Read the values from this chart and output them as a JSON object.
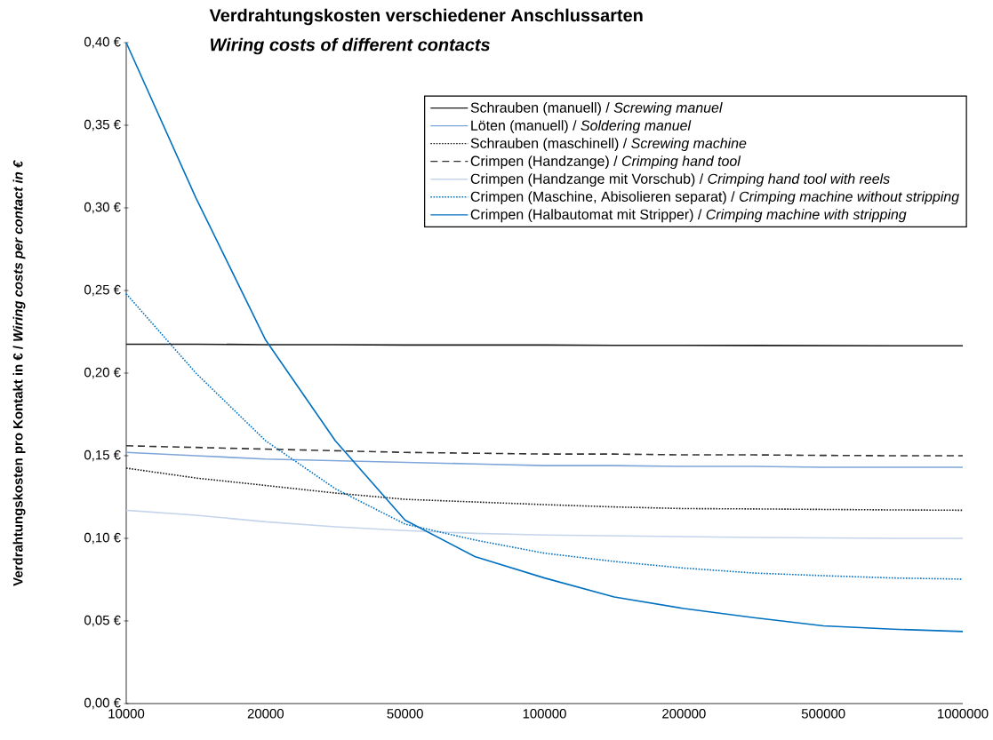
{
  "chart_data": {
    "type": "line",
    "title": "Verdrahtungskosten verschiedener Anschlussarten",
    "subtitle": "Wiring costs of different contacts",
    "ylabel": "Verdrahtungskosten pro Kontakt in € / *Wiring costs per contact in €*",
    "categories": [
      "10000",
      null,
      "20000",
      null,
      "50000",
      null,
      "100000",
      null,
      "200000",
      null,
      "500000",
      null,
      "1000000"
    ],
    "ylim": [
      0,
      0.4
    ],
    "yticks": [
      {
        "value": 0,
        "label": "0,00 €"
      },
      {
        "value": 0.05,
        "label": "0,05 €"
      },
      {
        "value": 0.1,
        "label": "0,10 €"
      },
      {
        "value": 0.15,
        "label": "0,15 €"
      },
      {
        "value": 0.2,
        "label": "0,20 €"
      },
      {
        "value": 0.25,
        "label": "0,25 €"
      },
      {
        "value": 0.3,
        "label": "0,30 €"
      },
      {
        "value": 0.35,
        "label": "0,35 €"
      },
      {
        "value": 0.4,
        "label": "0,40 €"
      }
    ],
    "legend": "top right",
    "grid": false,
    "marker": "none",
    "series": [
      {
        "name": "Schrauben (manuell) / *Screwing manuel*",
        "color": "#1a1a1a",
        "line_style": "solid",
        "values": [
          0.2175,
          0.2175,
          0.2172,
          0.2172,
          0.217,
          0.217,
          0.217,
          0.2168,
          0.2168,
          0.2167,
          0.2166,
          0.2165,
          0.2165
        ]
      },
      {
        "name": "Löten (manuell) / *Soldering manuel*",
        "color": "#7fa6d9",
        "line_style": "solid",
        "values": [
          0.152,
          0.15,
          0.148,
          0.147,
          0.146,
          0.145,
          0.144,
          0.144,
          0.1435,
          0.1435,
          0.143,
          0.143,
          0.143
        ]
      },
      {
        "name": "Schrauben (maschinell) / *Screwing machine*",
        "color": "#1a1a1a",
        "line_style": "dotted",
        "values": [
          0.1425,
          0.1365,
          0.132,
          0.1274,
          0.1236,
          0.122,
          0.1204,
          0.119,
          0.118,
          0.1178,
          0.1175,
          0.1172,
          0.117
        ]
      },
      {
        "name": "Crimpen (Handzange) / *Crimping hand tool*",
        "color": "#333333",
        "line_style": "dashed",
        "values": [
          0.156,
          0.155,
          0.154,
          0.153,
          0.152,
          0.1515,
          0.151,
          0.151,
          0.1505,
          0.1505,
          0.1502,
          0.15,
          0.15
        ]
      },
      {
        "name": "Crimpen (Handzange mit Vorschub) / *Crimping hand tool with reels*",
        "color": "#c5d5ec",
        "line_style": "solid",
        "values": [
          0.117,
          0.114,
          0.11,
          0.107,
          0.1047,
          0.103,
          0.102,
          0.1015,
          0.101,
          0.1005,
          0.1003,
          0.1,
          0.1
        ]
      },
      {
        "name": "Crimpen (Maschine, Abisolieren separat) / *Crimping machine without stripping*",
        "color": "#0070c0",
        "line_style": "dotted",
        "values": [
          0.248,
          0.2,
          0.159,
          0.13,
          0.1086,
          0.099,
          0.091,
          0.086,
          0.082,
          0.079,
          0.0774,
          0.076,
          0.0753
        ]
      },
      {
        "name": "Crimpen (Halbautomat mit Stripper) / *Crimping machine with stripping*",
        "color": "#0070c0",
        "line_style": "solid",
        "values": [
          0.4,
          0.306,
          0.22,
          0.159,
          0.111,
          0.089,
          0.076,
          0.0645,
          0.0575,
          0.052,
          0.047,
          0.045,
          0.0436
        ]
      }
    ]
  }
}
